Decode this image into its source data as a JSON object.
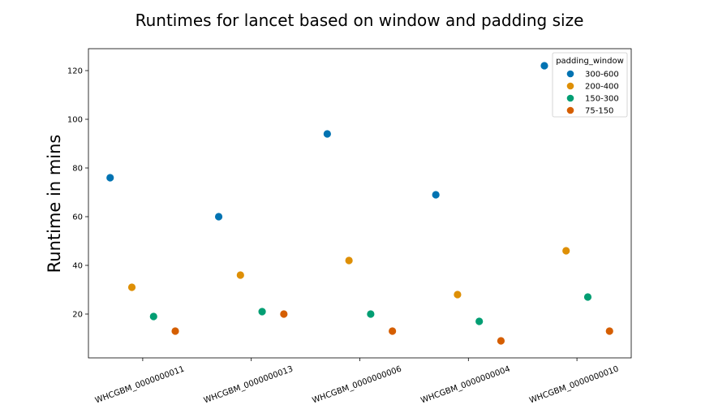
{
  "chart_data": {
    "type": "scatter",
    "title": "Runtimes for lancet based on window and padding size",
    "xlabel": "",
    "ylabel": "Runtime in mins",
    "categories": [
      "WHCGBM_0000000011",
      "WHCGBM_0000000013",
      "WHCGBM_0000000006",
      "WHCGBM_0000000004",
      "WHCGBM_0000000010"
    ],
    "yticks": [
      20,
      40,
      60,
      80,
      100,
      120
    ],
    "ylim": [
      2,
      129
    ],
    "grid": false,
    "legend": {
      "title": "padding_window",
      "placement": "top-right"
    },
    "series": [
      {
        "name": "300-600",
        "color": "#0173b2",
        "values": [
          76,
          60,
          94,
          69,
          122
        ]
      },
      {
        "name": "200-400",
        "color": "#de8f05",
        "values": [
          31,
          36,
          42,
          28,
          46
        ]
      },
      {
        "name": "150-300",
        "color": "#029e73",
        "values": [
          19,
          21,
          20,
          17,
          27
        ]
      },
      {
        "name": "75-150",
        "color": "#d55e00",
        "values": [
          13,
          20,
          13,
          9,
          13
        ]
      }
    ]
  }
}
